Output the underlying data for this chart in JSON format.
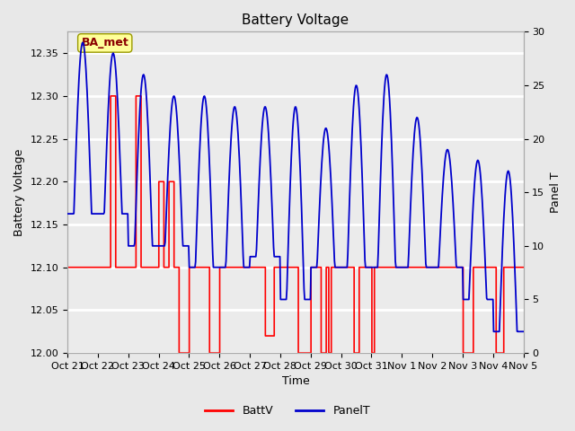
{
  "title": "Battery Voltage",
  "xlabel": "Time",
  "ylabel_left": "Battery Voltage",
  "ylabel_right": "Panel T",
  "ylim_left": [
    12.0,
    12.375
  ],
  "ylim_right": [
    0,
    30
  ],
  "annotation_text": "BA_met",
  "annotation_color": "#8B0000",
  "annotation_bg": "#FFFF99",
  "bg_color": "#E8E8E8",
  "plot_bg_color": "#EBEBEB",
  "grid_color": "white",
  "tick_labels": [
    "Oct 21",
    "Oct 22",
    "Oct 23",
    "Oct 24",
    "Oct 25",
    "Oct 26",
    "Oct 27",
    "Oct 28",
    "Oct 29",
    "Oct 30",
    "Oct 31",
    "Nov 1",
    "Nov 2",
    "Nov 3",
    "Nov 4",
    "Nov 5"
  ],
  "battv_color": "#FF0000",
  "panelt_color": "#0000CC",
  "legend_battv": "BattV",
  "legend_panelt": "PanelT"
}
